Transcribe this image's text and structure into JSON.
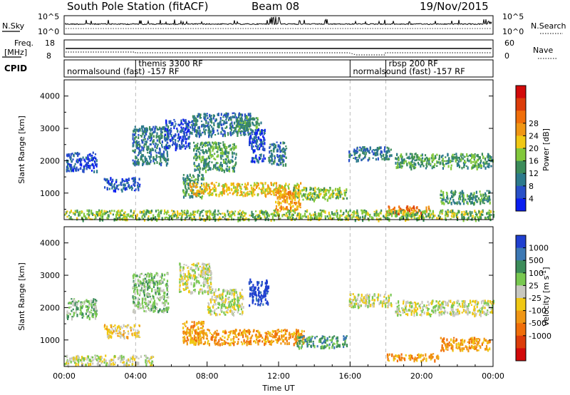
{
  "header": {
    "title": "South Pole Station (fitACF)",
    "beam": "Beam 08",
    "date": "19/Nov/2015"
  },
  "status_panel": {
    "nsky_label": "N.Sky",
    "nsky_ticks": [
      "10^5",
      "10^0"
    ],
    "nsearch_label": "N.Search",
    "nsearch_ticks": [
      "10^5",
      "10^0"
    ],
    "freq_label": "Freq.",
    "freq_unit": "[MHz]",
    "freq_ticks": [
      "18",
      "8"
    ],
    "nave_label": "Nave",
    "nave_ticks": [
      "60",
      "0"
    ]
  },
  "cpid": {
    "label": "CPID",
    "segments": [
      {
        "name": "normalsound (fast) -157 RF",
        "start_hr": 0,
        "end_hr": 4,
        "row": 2
      },
      {
        "name": "themis 3300 RF",
        "start_hr": 4,
        "end_hr": 16,
        "row": 1
      },
      {
        "name": "normalsound (fast) -157 RF",
        "start_hr": 16,
        "end_hr": 18,
        "row": 2
      },
      {
        "name": "rbsp 200 RF",
        "start_hr": 18,
        "end_hr": 24,
        "row": 1
      }
    ]
  },
  "chart_data": [
    {
      "type": "heatmap",
      "name": "power",
      "ylabel": "Slant Range [km]",
      "xlim_hr": [
        0,
        24
      ],
      "ylim": [
        180,
        4500
      ],
      "yticks": [
        1000,
        2000,
        3000,
        4000
      ],
      "colorbar": {
        "label": "Power [dB]",
        "ticks": [
          "4",
          "8",
          "12",
          "16",
          "20",
          "24",
          "28"
        ],
        "colors": [
          "#0a1ef0",
          "#2850c8",
          "#2d7a8c",
          "#3c8c5a",
          "#82c83c",
          "#f0c814",
          "#f09614",
          "#f06e0a",
          "#dc3c0a",
          "#d20a0a"
        ]
      },
      "regions": [
        {
          "x": [
            0.1,
            1.8
          ],
          "y": [
            1700,
            2300
          ],
          "level": 1
        },
        {
          "x": [
            2.2,
            4.2
          ],
          "y": [
            1100,
            1500
          ],
          "level": 1
        },
        {
          "x": [
            3.8,
            5.8
          ],
          "y": [
            1900,
            3100
          ],
          "level": 2
        },
        {
          "x": [
            5.6,
            7.0
          ],
          "y": [
            2400,
            3300
          ],
          "level": 1
        },
        {
          "x": [
            6.6,
            7.8
          ],
          "y": [
            900,
            1600
          ],
          "level": 3
        },
        {
          "x": [
            7.0,
            10.4
          ],
          "y": [
            2800,
            3500
          ],
          "level": 2
        },
        {
          "x": [
            7.2,
            9.6
          ],
          "y": [
            1700,
            2600
          ],
          "level": 3
        },
        {
          "x": [
            9.6,
            11.0
          ],
          "y": [
            2900,
            3400
          ],
          "level": 3
        },
        {
          "x": [
            7.0,
            13.2
          ],
          "y": [
            950,
            1350
          ],
          "level": 5
        },
        {
          "x": [
            10.3,
            11.2
          ],
          "y": [
            2000,
            3000
          ],
          "level": 1
        },
        {
          "x": [
            11.4,
            12.4
          ],
          "y": [
            1900,
            2600
          ],
          "level": 2
        },
        {
          "x": [
            11.8,
            13.2
          ],
          "y": [
            500,
            1100
          ],
          "level": 6
        },
        {
          "x": [
            12.8,
            15.8
          ],
          "y": [
            800,
            1200
          ],
          "level": 4
        },
        {
          "x": [
            15.9,
            18.3
          ],
          "y": [
            2050,
            2450
          ],
          "level": 2
        },
        {
          "x": [
            18.5,
            24.0
          ],
          "y": [
            1800,
            2250
          ],
          "level": 3
        },
        {
          "x": [
            18.0,
            20.4
          ],
          "y": [
            380,
            620
          ],
          "level": 7
        },
        {
          "x": [
            21.0,
            23.8
          ],
          "y": [
            700,
            1100
          ],
          "level": 3
        },
        {
          "x": [
            0,
            24
          ],
          "y": [
            200,
            500
          ],
          "level": 4
        }
      ]
    },
    {
      "type": "heatmap",
      "name": "velocity",
      "xlabel": "Time UT",
      "ylabel": "Slant Range [km]",
      "xlim_hr": [
        0,
        24
      ],
      "xticks": [
        "00:00",
        "04:00",
        "08:00",
        "12:00",
        "16:00",
        "20:00",
        "00:00"
      ],
      "ylim": [
        180,
        4500
      ],
      "yticks": [
        1000,
        2000,
        3000,
        4000
      ],
      "colorbar": {
        "label": "Velocity [m s^-1]",
        "ticks": [
          "1000",
          "500",
          "100",
          "25",
          "-25",
          "-100",
          "-500",
          "-1000"
        ],
        "colors": [
          "#2040d0",
          "#3c78b4",
          "#3c8c5a",
          "#78c850",
          "#c8c8c0",
          "#f0c814",
          "#f09614",
          "#f06e0a",
          "#dc3c0a",
          "#d20a0a"
        ]
      },
      "regions": [
        {
          "x": [
            0.1,
            1.8
          ],
          "y": [
            1700,
            2300
          ],
          "level": 3
        },
        {
          "x": [
            2.2,
            4.2
          ],
          "y": [
            1100,
            1500
          ],
          "level": 5
        },
        {
          "x": [
            3.8,
            5.8
          ],
          "y": [
            1900,
            3100
          ],
          "level": 3
        },
        {
          "x": [
            6.4,
            8.2
          ],
          "y": [
            2500,
            3400
          ],
          "level": 4
        },
        {
          "x": [
            6.6,
            7.8
          ],
          "y": [
            900,
            1600
          ],
          "level": 6
        },
        {
          "x": [
            7.0,
            13.5
          ],
          "y": [
            900,
            1350
          ],
          "level": 6
        },
        {
          "x": [
            8.0,
            10.0
          ],
          "y": [
            1800,
            2600
          ],
          "level": 4
        },
        {
          "x": [
            10.3,
            11.4
          ],
          "y": [
            2100,
            2900
          ],
          "level": 0
        },
        {
          "x": [
            13.0,
            15.8
          ],
          "y": [
            800,
            1150
          ],
          "level": 2
        },
        {
          "x": [
            15.9,
            18.3
          ],
          "y": [
            2050,
            2450
          ],
          "level": 4
        },
        {
          "x": [
            18.5,
            24.0
          ],
          "y": [
            1800,
            2250
          ],
          "level": 4
        },
        {
          "x": [
            18.0,
            21.0
          ],
          "y": [
            380,
            600
          ],
          "level": 6
        },
        {
          "x": [
            21.0,
            23.8
          ],
          "y": [
            700,
            1100
          ],
          "level": 6
        },
        {
          "x": [
            0,
            5
          ],
          "y": [
            250,
            550
          ],
          "level": 4
        }
      ]
    }
  ]
}
